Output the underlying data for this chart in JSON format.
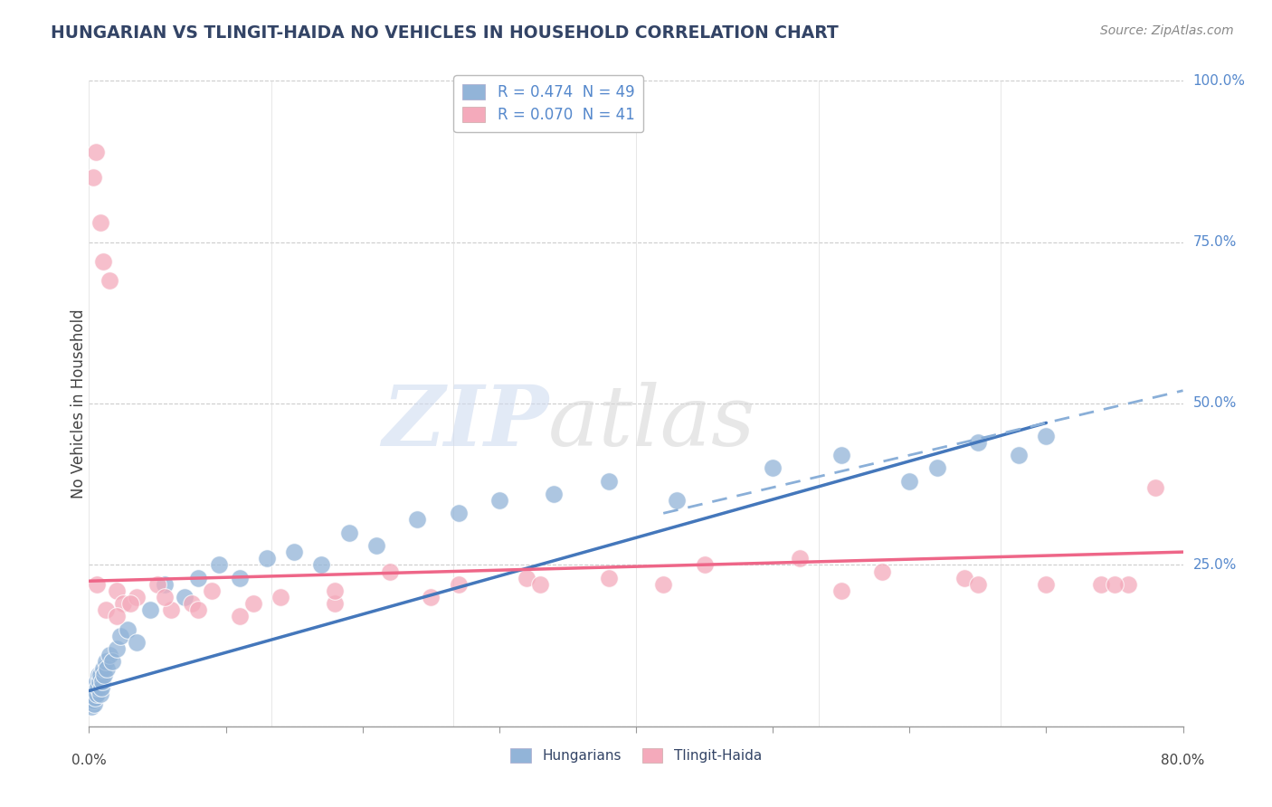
{
  "title": "HUNGARIAN VS TLINGIT-HAIDA NO VEHICLES IN HOUSEHOLD CORRELATION CHART",
  "source": "Source: ZipAtlas.com",
  "ylabel": "No Vehicles in Household",
  "xlim": [
    0.0,
    80.0
  ],
  "ylim": [
    0.0,
    100.0
  ],
  "legend": {
    "R1": "0.474",
    "N1": "49",
    "R2": "0.070",
    "N2": "41"
  },
  "blue_color": "#92B4D8",
  "pink_color": "#F4AABB",
  "line_blue": "#4477BB",
  "line_pink": "#EE6688",
  "line_blue_dash": "#8AAFD8",
  "background": "#FFFFFF",
  "grid_color": "#CCCCCC",
  "hung_x": [
    0.2,
    0.3,
    0.35,
    0.4,
    0.45,
    0.5,
    0.55,
    0.6,
    0.65,
    0.7,
    0.75,
    0.8,
    0.85,
    0.9,
    0.95,
    1.0,
    1.1,
    1.2,
    1.3,
    1.5,
    1.7,
    2.0,
    2.3,
    2.8,
    3.5,
    4.5,
    5.5,
    7.0,
    8.0,
    9.5,
    11.0,
    13.0,
    15.0,
    17.0,
    19.0,
    21.0,
    24.0,
    27.0,
    30.0,
    34.0,
    38.0,
    43.0,
    50.0,
    55.0,
    60.0,
    62.0,
    65.0,
    68.0,
    70.0
  ],
  "hung_y": [
    3.0,
    4.0,
    5.0,
    3.5,
    4.5,
    6.0,
    5.0,
    7.0,
    6.0,
    8.0,
    7.0,
    5.0,
    8.0,
    6.0,
    7.0,
    9.0,
    8.0,
    10.0,
    9.0,
    11.0,
    10.0,
    12.0,
    14.0,
    15.0,
    13.0,
    18.0,
    22.0,
    20.0,
    23.0,
    25.0,
    23.0,
    26.0,
    27.0,
    25.0,
    30.0,
    28.0,
    32.0,
    33.0,
    35.0,
    36.0,
    38.0,
    35.0,
    40.0,
    42.0,
    38.0,
    40.0,
    44.0,
    42.0,
    45.0
  ],
  "tling_x": [
    0.5,
    0.8,
    1.0,
    1.5,
    2.0,
    2.5,
    3.5,
    5.0,
    6.0,
    7.5,
    9.0,
    11.0,
    14.0,
    18.0,
    22.0,
    27.0,
    32.0,
    38.0,
    45.0,
    52.0,
    58.0,
    64.0,
    70.0,
    74.0,
    76.0,
    78.0,
    0.3,
    0.6,
    1.2,
    2.0,
    3.0,
    5.5,
    8.0,
    12.0,
    18.0,
    25.0,
    33.0,
    42.0,
    55.0,
    65.0,
    75.0
  ],
  "tling_y": [
    89.0,
    78.0,
    72.0,
    69.0,
    21.0,
    19.0,
    20.0,
    22.0,
    18.0,
    19.0,
    21.0,
    17.0,
    20.0,
    19.0,
    24.0,
    22.0,
    23.0,
    23.0,
    25.0,
    26.0,
    24.0,
    23.0,
    22.0,
    22.0,
    22.0,
    37.0,
    85.0,
    22.0,
    18.0,
    17.0,
    19.0,
    20.0,
    18.0,
    19.0,
    21.0,
    20.0,
    22.0,
    22.0,
    21.0,
    22.0,
    22.0
  ],
  "hung_line_x0": 0.0,
  "hung_line_y0": 5.5,
  "hung_line_x1": 70.0,
  "hung_line_y1": 47.0,
  "hung_dash_x0": 42.0,
  "hung_dash_y0": 33.0,
  "hung_dash_x1": 80.0,
  "hung_dash_y1": 52.0,
  "tling_line_x0": 0.0,
  "tling_line_y0": 22.5,
  "tling_line_x1": 80.0,
  "tling_line_y1": 27.0
}
